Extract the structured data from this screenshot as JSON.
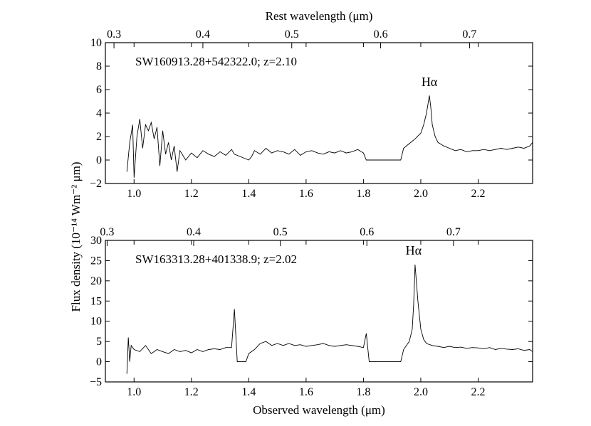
{
  "figure": {
    "ylabel": "Flux density (10⁻¹⁴ Wm⁻² μm)",
    "xlabel_bottom": "Observed wavelength (μm)",
    "xlabel_top": "Rest wavelength (μm)"
  },
  "chart_data": [
    {
      "type": "line",
      "name": "SW160913.28+542322.0; z=2.10",
      "label": "SW160913.28+542322.0; z=2.10",
      "redshift": 2.1,
      "xlim": [
        0.9,
        2.39
      ],
      "ylim": [
        -2,
        10
      ],
      "xticks": [
        1.0,
        1.2,
        1.4,
        1.6,
        1.8,
        2.0,
        2.2
      ],
      "xtick_labels": [
        "1.0",
        "1.2",
        "1.4",
        "1.6",
        "1.8",
        "2.0",
        "2.2"
      ],
      "yticks": [
        -2,
        0,
        2,
        4,
        6,
        8,
        10
      ],
      "ytick_labels": [
        "−2",
        "0",
        "2",
        "4",
        "6",
        "8",
        "10"
      ],
      "top_xticks": [
        0.3,
        0.4,
        0.5,
        0.6,
        0.7
      ],
      "top_xtick_labels": [
        "0.3",
        "0.4",
        "0.5",
        "0.6",
        "0.7"
      ],
      "top_axis_label": "Rest wavelength (μm)",
      "annotation": {
        "text": "Hα",
        "x": 2.03,
        "y": 6.3
      },
      "x": [
        0.975,
        0.985,
        0.995,
        1.0,
        1.01,
        1.02,
        1.03,
        1.04,
        1.05,
        1.06,
        1.07,
        1.08,
        1.09,
        1.1,
        1.11,
        1.12,
        1.13,
        1.14,
        1.15,
        1.16,
        1.18,
        1.2,
        1.22,
        1.24,
        1.26,
        1.28,
        1.3,
        1.32,
        1.34,
        1.35,
        1.4,
        1.41,
        1.42,
        1.44,
        1.46,
        1.48,
        1.5,
        1.52,
        1.54,
        1.56,
        1.58,
        1.6,
        1.62,
        1.64,
        1.66,
        1.68,
        1.7,
        1.72,
        1.74,
        1.76,
        1.78,
        1.8,
        1.81,
        1.93,
        1.94,
        1.96,
        1.98,
        2.0,
        2.01,
        2.02,
        2.03,
        2.035,
        2.04,
        2.05,
        2.06,
        2.08,
        2.1,
        2.12,
        2.14,
        2.16,
        2.18,
        2.2,
        2.22,
        2.24,
        2.26,
        2.28,
        2.3,
        2.32,
        2.34,
        2.36,
        2.38,
        2.39
      ],
      "y": [
        -1.0,
        1.5,
        3.0,
        -1.5,
        2.0,
        3.5,
        1.0,
        3.0,
        2.5,
        3.2,
        1.8,
        2.8,
        -0.5,
        2.5,
        0.5,
        1.5,
        0.0,
        1.2,
        -1.0,
        0.8,
        0.0,
        0.6,
        0.2,
        0.8,
        0.5,
        0.3,
        0.7,
        0.4,
        0.9,
        0.5,
        0.0,
        0.3,
        0.8,
        0.5,
        1.0,
        0.6,
        0.8,
        0.7,
        0.5,
        0.9,
        0.4,
        0.7,
        0.8,
        0.6,
        0.5,
        0.7,
        0.6,
        0.8,
        0.6,
        0.7,
        0.9,
        0.6,
        0.0,
        0.0,
        1.0,
        1.4,
        1.8,
        2.3,
        3.0,
        4.0,
        5.5,
        4.5,
        3.0,
        2.0,
        1.5,
        1.2,
        1.0,
        0.8,
        0.9,
        0.7,
        0.8,
        0.8,
        0.9,
        0.8,
        0.9,
        1.0,
        0.9,
        1.0,
        1.1,
        1.0,
        1.2,
        1.5
      ]
    },
    {
      "type": "line",
      "name": "SW163313.28+401338.9; z=2.02",
      "label": "SW163313.28+401338.9; z=2.02",
      "redshift": 2.02,
      "xlim": [
        0.9,
        2.39
      ],
      "ylim": [
        -5,
        30
      ],
      "xticks": [
        1.0,
        1.2,
        1.4,
        1.6,
        1.8,
        2.0,
        2.2
      ],
      "xtick_labels": [
        "1.0",
        "1.2",
        "1.4",
        "1.6",
        "1.8",
        "2.0",
        "2.2"
      ],
      "yticks": [
        -5,
        0,
        5,
        10,
        15,
        20,
        25,
        30
      ],
      "ytick_labels": [
        "−5",
        "0",
        "5",
        "10",
        "15",
        "20",
        "25",
        "30"
      ],
      "top_xticks": [
        0.3,
        0.4,
        0.5,
        0.6,
        0.7
      ],
      "top_xtick_labels": [
        "0.3",
        "0.4",
        "0.5",
        "0.6",
        "0.7"
      ],
      "annotation": {
        "text": "Hα",
        "x": 1.975,
        "y": 26.5
      },
      "x": [
        0.975,
        0.98,
        0.985,
        0.99,
        1.0,
        1.02,
        1.04,
        1.06,
        1.08,
        1.1,
        1.12,
        1.14,
        1.16,
        1.18,
        1.2,
        1.22,
        1.24,
        1.26,
        1.28,
        1.3,
        1.32,
        1.34,
        1.35,
        1.36,
        1.39,
        1.4,
        1.42,
        1.44,
        1.46,
        1.48,
        1.5,
        1.52,
        1.54,
        1.56,
        1.58,
        1.6,
        1.62,
        1.64,
        1.66,
        1.68,
        1.7,
        1.72,
        1.74,
        1.76,
        1.78,
        1.8,
        1.81,
        1.82,
        1.93,
        1.94,
        1.95,
        1.96,
        1.97,
        1.975,
        1.98,
        1.99,
        2.0,
        2.01,
        2.02,
        2.04,
        2.06,
        2.08,
        2.1,
        2.12,
        2.14,
        2.16,
        2.18,
        2.2,
        2.22,
        2.24,
        2.26,
        2.28,
        2.3,
        2.32,
        2.34,
        2.36,
        2.38,
        2.39
      ],
      "y": [
        -3.0,
        6.0,
        0.0,
        4.0,
        3.0,
        2.5,
        4.0,
        2.0,
        3.0,
        2.5,
        2.0,
        3.0,
        2.5,
        2.8,
        2.2,
        3.0,
        2.5,
        3.0,
        3.2,
        3.0,
        3.5,
        3.5,
        13.0,
        0.0,
        0.0,
        2.0,
        3.0,
        4.5,
        5.0,
        4.0,
        4.5,
        4.0,
        4.5,
        4.0,
        4.2,
        3.8,
        4.0,
        4.2,
        4.5,
        4.0,
        3.8,
        4.0,
        4.2,
        4.0,
        3.8,
        3.5,
        7.0,
        0.0,
        0.0,
        3.0,
        4.0,
        5.0,
        8.0,
        14.0,
        24.0,
        15.0,
        8.0,
        5.5,
        4.5,
        4.0,
        3.8,
        3.5,
        3.8,
        3.5,
        3.6,
        3.3,
        3.5,
        3.4,
        3.2,
        3.5,
        3.0,
        3.3,
        3.1,
        3.0,
        3.2,
        2.8,
        3.0,
        2.5
      ]
    }
  ]
}
